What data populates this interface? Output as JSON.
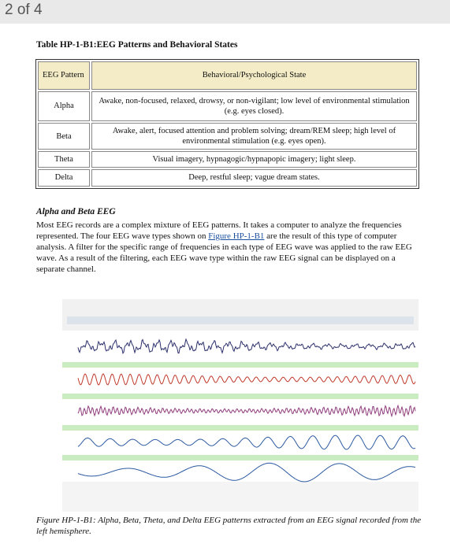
{
  "page_indicator": "2 of 4",
  "table": {
    "title": "Table HP-1-B1:EEG Patterns and Behavioral States",
    "header": [
      "EEG Pattern",
      "Behavioral/Psychological State"
    ],
    "rows": [
      [
        "Alpha",
        "Awake, non-focused, relaxed, drowsy, or non-vigilant; low level of environmental stimulation (e.g. eyes closed)."
      ],
      [
        "Beta",
        "Awake, alert, focused attention and problem solving; dream/REM sleep; high level of environmental stimulation (e.g. eyes open)."
      ],
      [
        "Theta",
        "Visual imagery, hypnagogic/hypnapopic imagery; light sleep."
      ],
      [
        "Delta",
        "Deep, restful sleep; vague dream states."
      ]
    ]
  },
  "section": {
    "heading": "Alpha and Beta EEG",
    "paragraph": {
      "before_link": "Most EEG records are a complex mixture of EEG patterns. It takes a computer to analyze the frequencies represented. The four EEG wave types shown on ",
      "link": "Figure HP-1-B1",
      "after_link": " are the result of this type of computer analysis. A filter for the specific range of frequencies in each type of EEG wave was applied to the raw EEG wave. As a result of the filtering, each EEG wave type within the raw EEG signal can be displayed on a separate channel."
    }
  },
  "figure": {
    "caption": "Figure HP-1-B1: Alpha, Beta, Theta, and Delta EEG patterns extracted from an EEG signal recorded from the left hemisphere."
  }
}
